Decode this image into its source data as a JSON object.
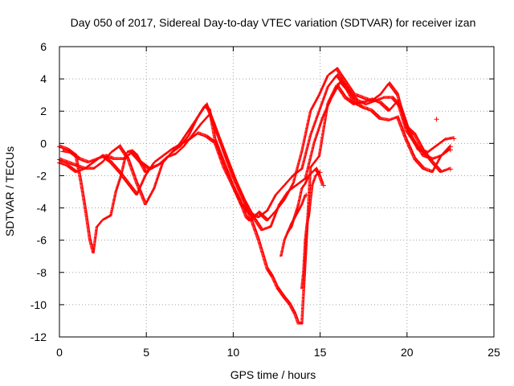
{
  "chart_data": {
    "type": "scatter",
    "title": "Day 050 of 2017, Sidereal Day-to-day VTEC variation (SDTVAR) for receiver izan",
    "xlabel": "GPS time / hours",
    "ylabel": "SDTVAR / TECUs",
    "xlim": [
      0,
      25
    ],
    "ylim": [
      -12,
      6
    ],
    "xticks": [
      0,
      5,
      10,
      15,
      20,
      25
    ],
    "yticks": [
      -12,
      -10,
      -8,
      -6,
      -4,
      -2,
      0,
      2,
      4,
      6
    ],
    "xtick_labels": [
      "0",
      "5",
      "10",
      "15",
      "20",
      "25"
    ],
    "ytick_labels": [
      "-12",
      "-10",
      "-8",
      "-6",
      "-4",
      "-2",
      "0",
      "2",
      "4",
      "6"
    ],
    "grid": true,
    "marker": "+",
    "color": "#ff0000",
    "series": [
      {
        "x": [
          0.0,
          0.5,
          1.0,
          1.3,
          1.6,
          1.8,
          2.0,
          2.2,
          2.5,
          3.0,
          3.3,
          3.6,
          3.9,
          4.2,
          4.5,
          5.0,
          5.5,
          6.0,
          6.5,
          7.0,
          7.5,
          8.0,
          8.4,
          8.7,
          9.0,
          9.5,
          10.0,
          10.4,
          10.8,
          11.0,
          11.5,
          12.0,
          12.5,
          13.0,
          13.5,
          14.0,
          14.5,
          15.0,
          15.5,
          16.0,
          16.5,
          17.0,
          17.5,
          18.0,
          18.5,
          19.0,
          19.5,
          20.0,
          20.5,
          21.0,
          21.5,
          22.0,
          22.5
        ],
        "values": [
          -0.2,
          -0.4,
          -0.8,
          -2.5,
          -4.5,
          -6.0,
          -6.8,
          -5.2,
          -4.8,
          -4.5,
          -3.0,
          -2.0,
          -0.6,
          -0.5,
          -0.8,
          -1.8,
          -1.5,
          -1.2,
          -0.6,
          0.0,
          0.8,
          1.6,
          2.3,
          2.0,
          0.2,
          -1.2,
          -2.6,
          -3.5,
          -4.6,
          -4.8,
          -4.3,
          -4.8,
          -4.2,
          -3.5,
          -2.5,
          -0.5,
          2.0,
          3.0,
          4.2,
          4.6,
          3.8,
          3.0,
          2.8,
          2.6,
          3.0,
          3.7,
          3.0,
          1.0,
          0.5,
          -0.5,
          -1.2,
          -1.8,
          -1.6
        ]
      },
      {
        "x": [
          0.0,
          0.5,
          1.0,
          1.5,
          2.0,
          2.5,
          3.0,
          3.5,
          4.0,
          4.5,
          5.0,
          5.5,
          6.0,
          6.5,
          7.0,
          7.5,
          8.0,
          8.5,
          9.0,
          9.5,
          10.0,
          10.5,
          11.0,
          11.5,
          12.0,
          12.3,
          12.6,
          13.0,
          13.3,
          13.6,
          13.8,
          14.0,
          14.5,
          15.0,
          15.5,
          16.0,
          16.5,
          17.0,
          17.5,
          18.0,
          18.5,
          19.0,
          19.5,
          20.0,
          20.5,
          21.0,
          21.5,
          22.0,
          22.5
        ],
        "values": [
          -1.0,
          -1.2,
          -1.4,
          -1.6,
          -1.6,
          -1.2,
          -0.6,
          -0.2,
          -1.0,
          -2.5,
          -3.8,
          -2.8,
          -1.2,
          -0.6,
          -0.2,
          0.5,
          1.6,
          2.4,
          1.0,
          -0.5,
          -2.0,
          -3.2,
          -4.5,
          -6.0,
          -7.8,
          -8.3,
          -9.0,
          -9.6,
          -10.0,
          -10.6,
          -11.2,
          -11.2,
          -1.5,
          -0.8,
          2.5,
          3.6,
          2.8,
          2.4,
          2.5,
          2.7,
          2.5,
          2.0,
          2.6,
          0.8,
          0.0,
          -0.8,
          -1.0,
          -0.8,
          -0.4
        ]
      },
      {
        "x": [
          0.0,
          0.5,
          1.0,
          1.5,
          2.0,
          2.5,
          3.0,
          3.5,
          4.0,
          4.5,
          5.0,
          5.5,
          6.0,
          6.5,
          7.0,
          7.5,
          8.0,
          8.5,
          9.0,
          9.5,
          10.0,
          10.5,
          11.0,
          11.5,
          12.0,
          12.5,
          13.0,
          13.5,
          14.0,
          14.5,
          15.0,
          15.5,
          16.0,
          16.5,
          17.0,
          17.5,
          18.0,
          18.5,
          19.0,
          19.5,
          20.0,
          20.5,
          21.0,
          21.5,
          22.0,
          22.5
        ],
        "values": [
          -1.2,
          -1.4,
          -1.8,
          -1.6,
          -1.2,
          -0.8,
          -1.2,
          -1.8,
          -2.5,
          -3.2,
          -2.0,
          -1.2,
          -0.8,
          -0.4,
          -0.1,
          0.2,
          0.6,
          0.4,
          0.0,
          -1.5,
          -2.6,
          -3.8,
          -4.4,
          -4.6,
          -4.2,
          -3.2,
          -2.6,
          -2.0,
          -1.6,
          0.5,
          2.0,
          3.5,
          4.2,
          3.5,
          2.5,
          2.2,
          2.0,
          1.5,
          1.4,
          1.6,
          0.2,
          -1.0,
          -1.6,
          -1.8,
          -0.8,
          -0.2
        ]
      },
      {
        "x": [
          0.2,
          0.7,
          1.2,
          1.7,
          2.2,
          2.7,
          3.2,
          3.7,
          4.2,
          4.7,
          5.2,
          5.7,
          6.2,
          6.7,
          7.2,
          7.7,
          8.2,
          8.7,
          9.2,
          9.7,
          10.2,
          10.7,
          11.2,
          11.7,
          12.2,
          12.7,
          13.2,
          13.7,
          14.2,
          14.7,
          15.2,
          15.7,
          16.2,
          16.7,
          17.2,
          17.7,
          18.2,
          18.7,
          19.2,
          19.7,
          20.2,
          20.7,
          21.2,
          21.7,
          22.2,
          22.7
        ],
        "values": [
          -0.5,
          -0.6,
          -1.0,
          -1.2,
          -1.0,
          -0.8,
          -1.0,
          -1.0,
          -0.6,
          -1.2,
          -1.6,
          -1.4,
          -0.9,
          -0.7,
          -0.2,
          0.5,
          1.2,
          1.8,
          0.4,
          -1.0,
          -2.4,
          -3.6,
          -4.6,
          -5.4,
          -5.2,
          -3.8,
          -3.0,
          -2.6,
          -2.2,
          0.0,
          1.6,
          2.8,
          3.8,
          3.2,
          2.6,
          2.4,
          2.6,
          2.8,
          2.8,
          2.2,
          0.6,
          -0.4,
          -0.6,
          -0.2,
          0.2,
          0.3
        ]
      },
      {
        "x": [
          12.8,
          13.0,
          13.2,
          13.4,
          13.6,
          13.8,
          14.0,
          14.2,
          14.4,
          14.6,
          14.8,
          15.0,
          15.2
        ],
        "values": [
          -7.0,
          -6.0,
          -5.5,
          -5.2,
          -4.5,
          -3.8,
          -2.8,
          -2.5,
          -2.0,
          -1.8,
          -1.6,
          -2.0,
          -2.6
        ]
      },
      {
        "x": [
          13.2,
          13.4,
          13.6,
          13.8,
          14.0,
          14.2
        ],
        "values": [
          -5.5,
          -5.0,
          -4.6,
          -4.2,
          -3.8,
          -3.2
        ]
      },
      {
        "x": [
          14.0,
          14.1,
          14.2,
          14.3,
          14.4,
          14.5,
          14.6,
          14.8,
          15.0
        ],
        "values": [
          -9.0,
          -8.0,
          -6.0,
          -5.0,
          -4.5,
          -3.5,
          -2.6,
          -2.0,
          -1.8
        ]
      },
      {
        "x": [
          21.7
        ],
        "values": [
          1.5
        ]
      }
    ]
  }
}
